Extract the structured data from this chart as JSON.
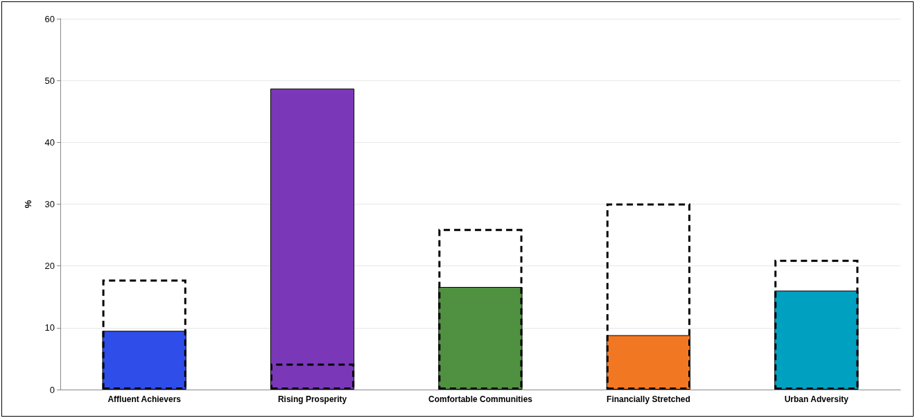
{
  "chart_data": {
    "type": "bar",
    "ylabel": "%",
    "categories": [
      "Affluent Achievers",
      "Rising Prosperity",
      "Comfortable Communities",
      "Financially Stretched",
      "Urban Adversity"
    ],
    "series": [
      {
        "colors": [
          "#2f4de8",
          "#7a38b8",
          "#4f9140",
          "#f27722",
          "#00a0c0"
        ],
        "values": [
          9.5,
          48.7,
          16.6,
          8.8,
          16.0
        ]
      },
      {
        "color": "#000000",
        "line_style": "dashed",
        "values": [
          17.8,
          4.2,
          26.0,
          30.1,
          21.0
        ]
      }
    ],
    "ylim": [
      0,
      60
    ],
    "yticks": [
      0,
      10,
      20,
      30,
      40,
      50,
      60
    ],
    "grid": "y"
  }
}
